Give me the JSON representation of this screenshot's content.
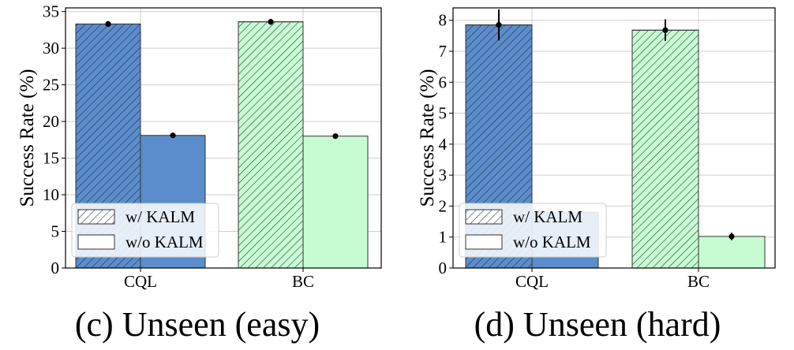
{
  "chart_data": [
    {
      "type": "bar",
      "caption": "(c) Unseen (easy)",
      "categories": [
        "CQL",
        "BC"
      ],
      "ylabel": "Success Rate (%)",
      "ylim": [
        0,
        35.5
      ],
      "yticks": [
        0,
        5,
        10,
        15,
        20,
        25,
        30,
        35
      ],
      "grid": true,
      "legend_placement": "lower-left",
      "legend": [
        "w/ KALM",
        "w/o KALM"
      ],
      "series": [
        {
          "name": "w/ KALM",
          "hatched": true,
          "values": [
            33.3,
            33.6
          ],
          "errors": [
            0.4,
            0.4
          ]
        },
        {
          "name": "w/o KALM",
          "hatched": false,
          "values": [
            18.1,
            18.0
          ],
          "errors": [
            0.2,
            0.3
          ]
        }
      ],
      "colors": {
        "CQL": "#5b8ccc",
        "BC": "#c7fbd2"
      }
    },
    {
      "type": "bar",
      "caption": "(d) Unseen (hard)",
      "categories": [
        "CQL",
        "BC"
      ],
      "ylabel": "Success Rate (%)",
      "ylim": [
        0,
        8.4
      ],
      "yticks": [
        0,
        1,
        2,
        3,
        4,
        5,
        6,
        7,
        8
      ],
      "grid": true,
      "legend_placement": "lower-left",
      "legend": [
        "w/ KALM",
        "w/o KALM"
      ],
      "series": [
        {
          "name": "w/ KALM",
          "hatched": true,
          "values": [
            7.85,
            7.68
          ],
          "errors": [
            0.5,
            0.35
          ]
        },
        {
          "name": "w/o KALM",
          "hatched": false,
          "values": [
            1.8,
            1.02
          ],
          "errors": [
            0,
            0.12
          ]
        }
      ],
      "colors": {
        "CQL": "#5b8ccc",
        "BC": "#c7fbd2"
      }
    }
  ]
}
